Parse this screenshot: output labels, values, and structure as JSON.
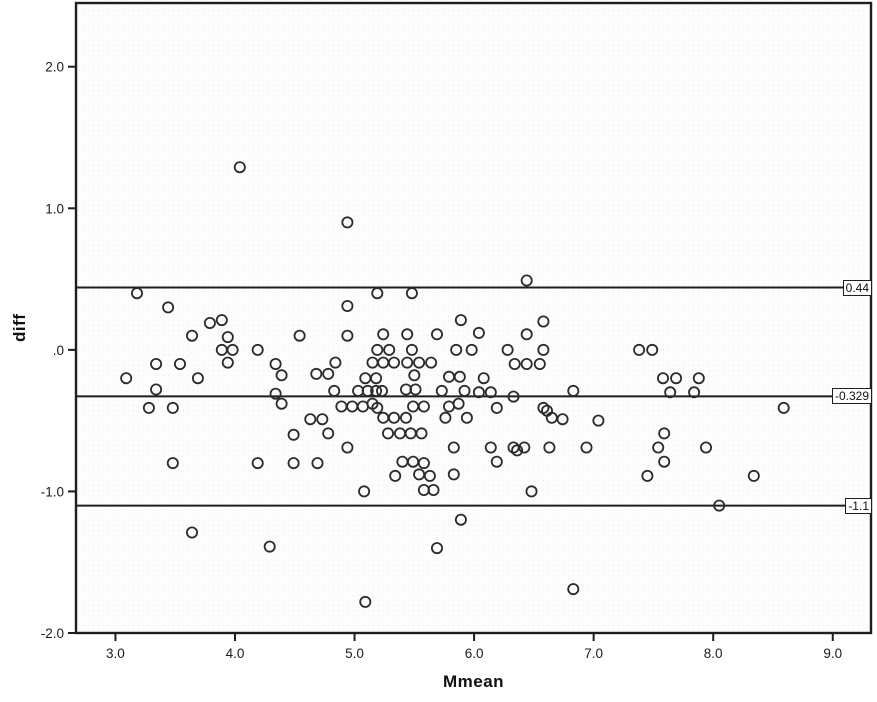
{
  "figure": {
    "xlabel": "Mmean",
    "ylabel": "diff"
  },
  "chart_data": {
    "type": "scatter",
    "title": "",
    "xlabel": "Mmean",
    "ylabel": "diff",
    "xlim": [
      2.67,
      9.32
    ],
    "ylim": [
      -2.0,
      2.45
    ],
    "grid": false,
    "legend": "none",
    "marker": "open-circle",
    "x_ticks": [
      {
        "value": 3.0,
        "label": "3.0"
      },
      {
        "value": 4.0,
        "label": "4.0"
      },
      {
        "value": 5.0,
        "label": "5.0"
      },
      {
        "value": 6.0,
        "label": "6.0"
      },
      {
        "value": 7.0,
        "label": "7.0"
      },
      {
        "value": 8.0,
        "label": "8.0"
      },
      {
        "value": 9.0,
        "label": "9.0"
      }
    ],
    "y_ticks": [
      {
        "value": 2.0,
        "label": "2.0"
      },
      {
        "value": 1.0,
        "label": "1.0"
      },
      {
        "value": 0.0,
        "label": ".0"
      },
      {
        "value": -1.0,
        "label": "-1.0"
      },
      {
        "value": -2.0,
        "label": "-2.0"
      }
    ],
    "reference_lines": [
      {
        "value": 0.44,
        "label": "0.44"
      },
      {
        "value": -0.329,
        "label": "-0.329"
      },
      {
        "value": -1.1,
        "label": "-1.1"
      }
    ],
    "points": [
      [
        4.04,
        1.29
      ],
      [
        4.94,
        0.9
      ],
      [
        6.44,
        0.49
      ],
      [
        3.18,
        0.4
      ],
      [
        5.19,
        0.4
      ],
      [
        5.48,
        0.4
      ],
      [
        3.44,
        0.3
      ],
      [
        4.94,
        0.31
      ],
      [
        3.79,
        0.19
      ],
      [
        3.89,
        0.21
      ],
      [
        5.89,
        0.21
      ],
      [
        6.58,
        0.2
      ],
      [
        3.64,
        0.1
      ],
      [
        3.94,
        0.09
      ],
      [
        4.54,
        0.1
      ],
      [
        4.94,
        0.1
      ],
      [
        5.24,
        0.11
      ],
      [
        5.44,
        0.11
      ],
      [
        5.69,
        0.11
      ],
      [
        6.04,
        0.12
      ],
      [
        6.44,
        0.11
      ],
      [
        3.89,
        0.0
      ],
      [
        3.98,
        0.0
      ],
      [
        4.19,
        0.0
      ],
      [
        5.19,
        0.0
      ],
      [
        5.29,
        0.0
      ],
      [
        5.48,
        0.0
      ],
      [
        5.85,
        0.0
      ],
      [
        5.98,
        0.0
      ],
      [
        6.28,
        0.0
      ],
      [
        6.58,
        0.0
      ],
      [
        7.38,
        0.0
      ],
      [
        7.49,
        0.0
      ],
      [
        3.34,
        -0.1
      ],
      [
        3.54,
        -0.1
      ],
      [
        3.94,
        -0.09
      ],
      [
        4.34,
        -0.1
      ],
      [
        4.84,
        -0.09
      ],
      [
        5.15,
        -0.09
      ],
      [
        5.24,
        -0.09
      ],
      [
        5.33,
        -0.09
      ],
      [
        5.44,
        -0.09
      ],
      [
        5.54,
        -0.09
      ],
      [
        5.64,
        -0.09
      ],
      [
        6.34,
        -0.1
      ],
      [
        6.44,
        -0.1
      ],
      [
        6.55,
        -0.1
      ],
      [
        3.09,
        -0.2
      ],
      [
        3.69,
        -0.2
      ],
      [
        4.39,
        -0.18
      ],
      [
        4.68,
        -0.17
      ],
      [
        4.78,
        -0.17
      ],
      [
        5.09,
        -0.2
      ],
      [
        5.18,
        -0.2
      ],
      [
        5.5,
        -0.18
      ],
      [
        5.79,
        -0.19
      ],
      [
        5.88,
        -0.19
      ],
      [
        6.08,
        -0.2
      ],
      [
        7.58,
        -0.2
      ],
      [
        7.69,
        -0.2
      ],
      [
        7.88,
        -0.2
      ],
      [
        3.34,
        -0.28
      ],
      [
        4.34,
        -0.31
      ],
      [
        4.83,
        -0.29
      ],
      [
        5.03,
        -0.29
      ],
      [
        5.11,
        -0.29
      ],
      [
        5.18,
        -0.29
      ],
      [
        5.23,
        -0.29
      ],
      [
        5.43,
        -0.28
      ],
      [
        5.51,
        -0.28
      ],
      [
        5.73,
        -0.29
      ],
      [
        5.92,
        -0.29
      ],
      [
        6.04,
        -0.3
      ],
      [
        6.14,
        -0.3
      ],
      [
        6.33,
        -0.33
      ],
      [
        6.83,
        -0.29
      ],
      [
        7.64,
        -0.3
      ],
      [
        7.84,
        -0.3
      ],
      [
        3.28,
        -0.41
      ],
      [
        3.48,
        -0.41
      ],
      [
        4.39,
        -0.38
      ],
      [
        4.89,
        -0.4
      ],
      [
        4.98,
        -0.4
      ],
      [
        5.07,
        -0.4
      ],
      [
        5.15,
        -0.38
      ],
      [
        5.19,
        -0.41
      ],
      [
        5.49,
        -0.4
      ],
      [
        5.58,
        -0.4
      ],
      [
        5.79,
        -0.4
      ],
      [
        5.87,
        -0.38
      ],
      [
        6.19,
        -0.41
      ],
      [
        6.58,
        -0.41
      ],
      [
        6.61,
        -0.43
      ],
      [
        8.59,
        -0.41
      ],
      [
        4.63,
        -0.49
      ],
      [
        4.73,
        -0.49
      ],
      [
        5.24,
        -0.48
      ],
      [
        5.33,
        -0.48
      ],
      [
        5.43,
        -0.48
      ],
      [
        5.76,
        -0.48
      ],
      [
        5.94,
        -0.48
      ],
      [
        6.65,
        -0.48
      ],
      [
        6.74,
        -0.49
      ],
      [
        7.04,
        -0.5
      ],
      [
        4.49,
        -0.6
      ],
      [
        4.78,
        -0.59
      ],
      [
        5.28,
        -0.59
      ],
      [
        5.38,
        -0.59
      ],
      [
        5.47,
        -0.59
      ],
      [
        5.56,
        -0.59
      ],
      [
        7.59,
        -0.59
      ],
      [
        4.94,
        -0.69
      ],
      [
        5.83,
        -0.69
      ],
      [
        6.14,
        -0.69
      ],
      [
        6.33,
        -0.69
      ],
      [
        6.36,
        -0.71
      ],
      [
        6.42,
        -0.69
      ],
      [
        6.63,
        -0.69
      ],
      [
        6.94,
        -0.69
      ],
      [
        7.54,
        -0.69
      ],
      [
        7.94,
        -0.69
      ],
      [
        3.48,
        -0.8
      ],
      [
        4.19,
        -0.8
      ],
      [
        4.49,
        -0.8
      ],
      [
        4.69,
        -0.8
      ],
      [
        5.4,
        -0.79
      ],
      [
        5.49,
        -0.79
      ],
      [
        5.58,
        -0.8
      ],
      [
        6.19,
        -0.79
      ],
      [
        7.59,
        -0.79
      ],
      [
        5.34,
        -0.89
      ],
      [
        5.54,
        -0.88
      ],
      [
        5.63,
        -0.89
      ],
      [
        5.83,
        -0.88
      ],
      [
        7.45,
        -0.89
      ],
      [
        8.34,
        -0.89
      ],
      [
        5.08,
        -1.0
      ],
      [
        5.58,
        -0.99
      ],
      [
        5.66,
        -0.99
      ],
      [
        6.48,
        -1.0
      ],
      [
        8.05,
        -1.1
      ],
      [
        5.89,
        -1.2
      ],
      [
        3.64,
        -1.29
      ],
      [
        4.29,
        -1.39
      ],
      [
        5.69,
        -1.4
      ],
      [
        6.83,
        -1.69
      ],
      [
        5.09,
        -1.78
      ]
    ]
  },
  "colors": {
    "frame": "#1e1e1e",
    "marker_stroke": "#2b2b2b",
    "ref_line": "#1e1e1e",
    "tick": "#1c1c1c",
    "plot_background": "#fdfdfd"
  }
}
